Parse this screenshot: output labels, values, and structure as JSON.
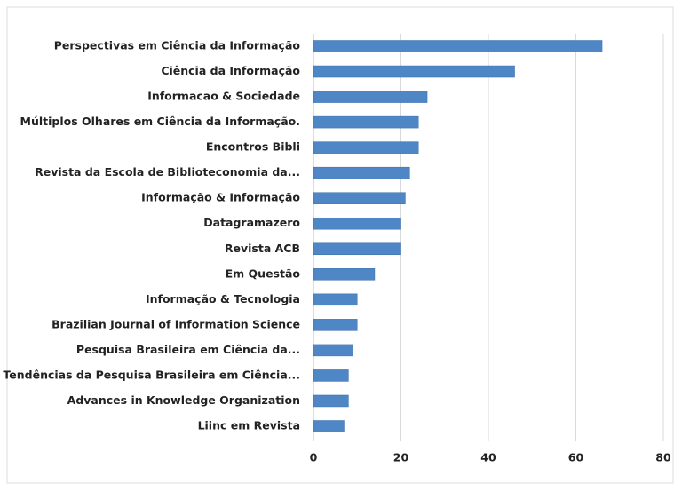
{
  "chart_data": {
    "type": "hbar",
    "categories": [
      "Perspectivas em Ciência da Informação",
      "Ciência da Informação",
      "Informacao & Sociedade",
      "Múltiplos Olhares em Ciência da Informação.",
      "Encontros Bibli",
      "Revista da Escola de Biblioteconomia da...",
      "Informação & Informação",
      "Datagramazero",
      "Revista ACB",
      "Em Questão",
      "Informação & Tecnologia",
      "Brazilian Journal of Information Science",
      "Pesquisa Brasileira em Ciência da...",
      "Tendências da Pesquisa Brasileira em Ciência...",
      "Advances in Knowledge Organization",
      "Liinc em Revista"
    ],
    "values": [
      66,
      46,
      26,
      24,
      24,
      22,
      21,
      20,
      20,
      14,
      10,
      10,
      9,
      8,
      8,
      7
    ],
    "color": "#4f86c6",
    "xlim": [
      0,
      80
    ],
    "xticks": [
      0,
      20,
      40,
      60,
      80
    ],
    "grid": true
  }
}
